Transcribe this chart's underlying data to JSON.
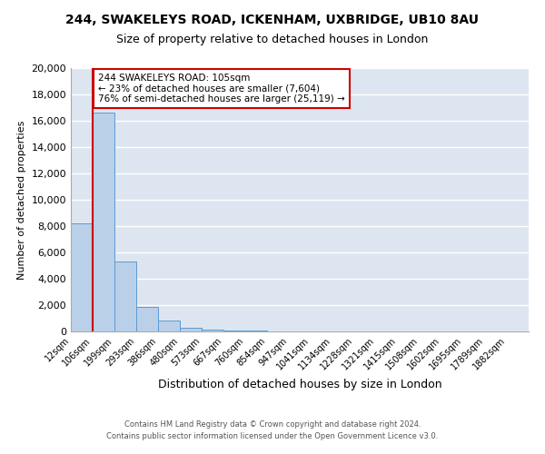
{
  "title": "244, SWAKELEYS ROAD, ICKENHAM, UXBRIDGE, UB10 8AU",
  "subtitle": "Size of property relative to detached houses in London",
  "xlabel": "Distribution of detached houses by size in London",
  "ylabel": "Number of detached properties",
  "bar_color": "#bad0e8",
  "bar_edge_color": "#5b9bd5",
  "background_color": "#dde6f0",
  "grid_color": "#ffffff",
  "bin_labels": [
    "12sqm",
    "106sqm",
    "199sqm",
    "293sqm",
    "386sqm",
    "480sqm",
    "573sqm",
    "667sqm",
    "760sqm",
    "854sqm",
    "947sqm",
    "1041sqm",
    "1134sqm",
    "1228sqm",
    "1321sqm",
    "1415sqm",
    "1508sqm",
    "1602sqm",
    "1695sqm",
    "1789sqm",
    "1882sqm"
  ],
  "bar_heights": [
    8200,
    16600,
    5300,
    1850,
    800,
    270,
    170,
    75,
    50,
    30,
    10,
    5,
    3,
    2,
    1,
    1,
    1,
    1,
    1,
    1,
    0
  ],
  "property_line_color": "#cc0000",
  "annotation_text": "244 SWAKELEYS ROAD: 105sqm\n← 23% of detached houses are smaller (7,604)\n76% of semi-detached houses are larger (25,119) →",
  "annotation_box_color": "#ffffff",
  "annotation_box_edge_color": "#cc0000",
  "ylim": [
    0,
    20000
  ],
  "yticks": [
    0,
    2000,
    4000,
    6000,
    8000,
    10000,
    12000,
    14000,
    16000,
    18000,
    20000
  ],
  "footer_line1": "Contains HM Land Registry data © Crown copyright and database right 2024.",
  "footer_line2": "Contains public sector information licensed under the Open Government Licence v3.0."
}
